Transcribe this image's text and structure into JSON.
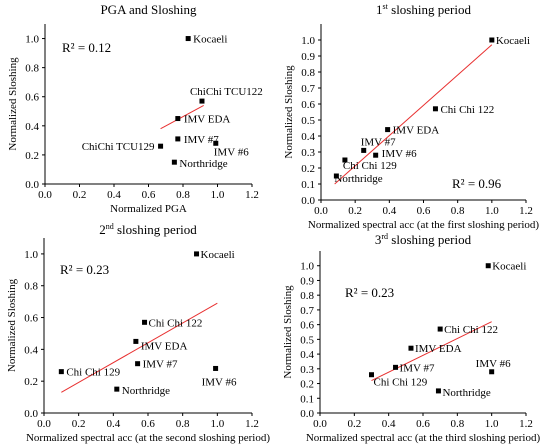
{
  "chart_data": [
    {
      "type": "scatter",
      "title": "PGA and Sloshing",
      "title_sup": "",
      "xlabel": "Normalized PGA",
      "ylabel": "Normalized Sloshing",
      "r2_text": "R² = 0.12",
      "xlim": [
        0.0,
        1.2
      ],
      "ylim": [
        0.0,
        1.1
      ],
      "xticks": [
        "0.0",
        "0.2",
        "0.4",
        "0.6",
        "0.8",
        "1.0",
        "1.2"
      ],
      "yticks": [
        "0.0",
        "0.2",
        "0.4",
        "0.6",
        "0.8",
        "1.0"
      ],
      "grid": false,
      "trendline": {
        "x": [
          0.67,
          0.92
        ],
        "y": [
          0.38,
          0.54
        ],
        "color": "#e83030"
      },
      "points": [
        {
          "label": "Kocaeli",
          "x": 0.83,
          "y": 1.0
        },
        {
          "label": "ChiChi TCU122",
          "x": 0.91,
          "y": 0.57
        },
        {
          "label": "IMV EDA",
          "x": 0.77,
          "y": 0.45
        },
        {
          "label": "IMV #7",
          "x": 0.77,
          "y": 0.31
        },
        {
          "label": "ChiChi TCU129",
          "x": 0.67,
          "y": 0.26
        },
        {
          "label": "IMV #6",
          "x": 0.99,
          "y": 0.28
        },
        {
          "label": "Northridge",
          "x": 0.75,
          "y": 0.15
        }
      ]
    },
    {
      "type": "scatter",
      "title": "1",
      "title_sup": "st",
      "title_rest": " sloshing period",
      "xlabel": "Normalized spectral acc (at the first sloshing period)",
      "ylabel": "Normalized Sloshing",
      "r2_text": "R² = 0.96",
      "xlim": [
        0.0,
        1.2
      ],
      "ylim": [
        0.0,
        1.1
      ],
      "xticks": [
        "0.0",
        "0.2",
        "0.4",
        "0.6",
        "0.8",
        "1.0",
        "1.2"
      ],
      "yticks": [
        "0.0",
        "0.1",
        "0.2",
        "0.3",
        "0.4",
        "0.5",
        "0.6",
        "0.7",
        "0.8",
        "0.9",
        "1.0"
      ],
      "grid": false,
      "trendline": {
        "x": [
          0.08,
          1.0
        ],
        "y": [
          0.1,
          0.97
        ],
        "color": "#e83030"
      },
      "points": [
        {
          "label": "Kocaeli",
          "x": 1.0,
          "y": 1.0
        },
        {
          "label": "Chi Chi 122",
          "x": 0.67,
          "y": 0.57
        },
        {
          "label": "IMV EDA",
          "x": 0.39,
          "y": 0.44
        },
        {
          "label": "IMV #7",
          "x": 0.25,
          "y": 0.31
        },
        {
          "label": "IMV #6",
          "x": 0.32,
          "y": 0.28
        },
        {
          "label": "Chi Chi 129",
          "x": 0.14,
          "y": 0.25
        },
        {
          "label": "Northridge",
          "x": 0.09,
          "y": 0.15
        }
      ]
    },
    {
      "type": "scatter",
      "title": "2",
      "title_sup": "nd",
      "title_rest": " sloshing period",
      "xlabel": "Normalized spectral acc (at the second sloshing period)",
      "ylabel": "Normalized Sloshing",
      "r2_text": "R² = 0.23",
      "xlim": [
        0.0,
        1.2
      ],
      "ylim": [
        0.0,
        1.1
      ],
      "xticks": [
        "0.0",
        "0.2",
        "0.4",
        "0.6",
        "0.8",
        "1.0",
        "1.2"
      ],
      "yticks": [
        "0.0",
        "0.2",
        "0.4",
        "0.6",
        "0.8",
        "1.0"
      ],
      "grid": false,
      "trendline": {
        "x": [
          0.1,
          1.0
        ],
        "y": [
          0.13,
          0.69
        ],
        "color": "#e83030"
      },
      "points": [
        {
          "label": "Kocaeli",
          "x": 0.88,
          "y": 1.0
        },
        {
          "label": "Chi Chi 122",
          "x": 0.58,
          "y": 0.57
        },
        {
          "label": "IMV EDA",
          "x": 0.53,
          "y": 0.45
        },
        {
          "label": "IMV #7",
          "x": 0.54,
          "y": 0.31
        },
        {
          "label": "Chi Chi 129",
          "x": 0.1,
          "y": 0.26
        },
        {
          "label": "IMV #6",
          "x": 0.99,
          "y": 0.28
        },
        {
          "label": "Northridge",
          "x": 0.42,
          "y": 0.15
        }
      ]
    },
    {
      "type": "scatter",
      "title": "3",
      "title_sup": "rd",
      "title_rest": " sloshing period",
      "xlabel": "Normalized spectral acc (at the third sloshing period)",
      "ylabel": "Normalized Sloshing",
      "r2_text": "R² = 0.23",
      "xlim": [
        0.0,
        1.2
      ],
      "ylim": [
        0.0,
        1.1
      ],
      "xticks": [
        "0.0",
        "0.2",
        "0.4",
        "0.6",
        "0.8",
        "1.0",
        "1.2"
      ],
      "yticks": [
        "0.0",
        "0.1",
        "0.2",
        "0.3",
        "0.4",
        "0.5",
        "0.6",
        "0.7",
        "0.8",
        "0.9",
        "1.0"
      ],
      "grid": false,
      "trendline": {
        "x": [
          0.3,
          1.0
        ],
        "y": [
          0.22,
          0.62
        ],
        "color": "#e83030"
      },
      "points": [
        {
          "label": "Kocaeli",
          "x": 0.98,
          "y": 1.0
        },
        {
          "label": "Chi Chi 122",
          "x": 0.7,
          "y": 0.57
        },
        {
          "label": "IMV EDA",
          "x": 0.53,
          "y": 0.44
        },
        {
          "label": "IMV #7",
          "x": 0.44,
          "y": 0.31
        },
        {
          "label": "Chi Chi 129",
          "x": 0.3,
          "y": 0.26
        },
        {
          "label": "IMV #6",
          "x": 1.0,
          "y": 0.28
        },
        {
          "label": "Northridge",
          "x": 0.69,
          "y": 0.15
        }
      ]
    }
  ]
}
